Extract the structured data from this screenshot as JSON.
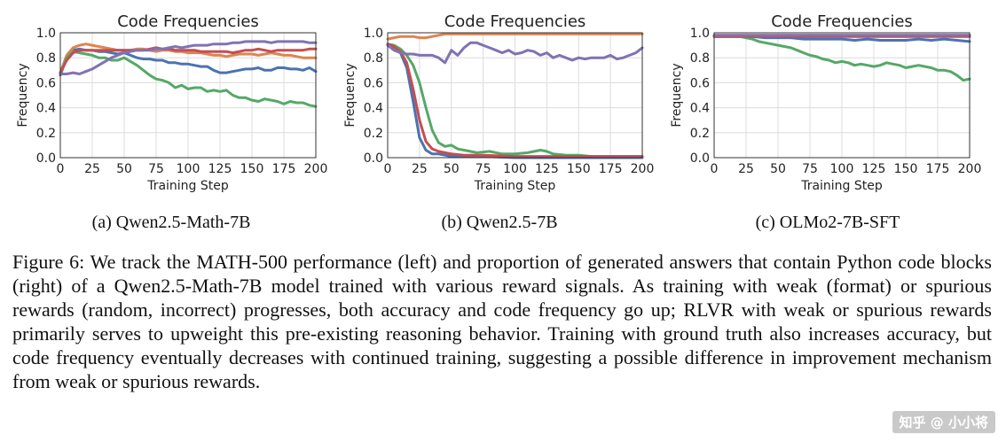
{
  "chart_data": [
    {
      "type": "line",
      "title": "Code Frequencies",
      "xlabel": "Training Step",
      "ylabel": "Frequency",
      "xlim": [
        0,
        200
      ],
      "ylim": [
        0,
        1.0
      ],
      "xticks": [
        0,
        25,
        50,
        75,
        100,
        125,
        150,
        175,
        200
      ],
      "yticks": [
        0.0,
        0.2,
        0.4,
        0.6,
        0.8,
        1.0
      ],
      "grid": true,
      "series": [
        {
          "name": "blue",
          "color": "#4c72b0",
          "x": [
            0,
            5,
            10,
            15,
            20,
            25,
            30,
            35,
            40,
            45,
            50,
            55,
            60,
            65,
            70,
            75,
            80,
            85,
            90,
            95,
            100,
            105,
            110,
            115,
            120,
            125,
            130,
            135,
            140,
            145,
            150,
            155,
            160,
            165,
            170,
            175,
            180,
            185,
            190,
            195,
            200
          ],
          "values": [
            0.66,
            0.8,
            0.86,
            0.87,
            0.86,
            0.86,
            0.85,
            0.85,
            0.84,
            0.83,
            0.84,
            0.82,
            0.8,
            0.79,
            0.79,
            0.78,
            0.78,
            0.76,
            0.76,
            0.75,
            0.75,
            0.74,
            0.73,
            0.73,
            0.7,
            0.68,
            0.68,
            0.69,
            0.7,
            0.71,
            0.71,
            0.72,
            0.7,
            0.7,
            0.72,
            0.72,
            0.71,
            0.71,
            0.7,
            0.72,
            0.69
          ]
        },
        {
          "name": "orange",
          "color": "#dd8452",
          "x": [
            0,
            5,
            10,
            15,
            20,
            25,
            30,
            35,
            40,
            45,
            50,
            55,
            60,
            65,
            70,
            75,
            80,
            85,
            90,
            95,
            100,
            105,
            110,
            115,
            120,
            125,
            130,
            135,
            140,
            145,
            150,
            155,
            160,
            165,
            170,
            175,
            180,
            185,
            190,
            195,
            200
          ],
          "values": [
            0.68,
            0.82,
            0.88,
            0.9,
            0.91,
            0.9,
            0.89,
            0.88,
            0.87,
            0.86,
            0.86,
            0.86,
            0.87,
            0.87,
            0.86,
            0.85,
            0.86,
            0.86,
            0.85,
            0.85,
            0.84,
            0.84,
            0.84,
            0.83,
            0.82,
            0.82,
            0.81,
            0.82,
            0.83,
            0.83,
            0.83,
            0.82,
            0.83,
            0.84,
            0.83,
            0.82,
            0.82,
            0.81,
            0.8,
            0.8,
            0.8
          ]
        },
        {
          "name": "green",
          "color": "#55a868",
          "x": [
            0,
            5,
            10,
            15,
            20,
            25,
            30,
            35,
            40,
            45,
            50,
            55,
            60,
            65,
            70,
            75,
            80,
            85,
            90,
            95,
            100,
            105,
            110,
            115,
            120,
            125,
            130,
            135,
            140,
            145,
            150,
            155,
            160,
            165,
            170,
            175,
            180,
            185,
            190,
            195,
            200
          ],
          "values": [
            0.67,
            0.8,
            0.85,
            0.84,
            0.83,
            0.82,
            0.8,
            0.8,
            0.78,
            0.78,
            0.8,
            0.77,
            0.74,
            0.7,
            0.66,
            0.63,
            0.62,
            0.6,
            0.56,
            0.58,
            0.55,
            0.56,
            0.56,
            0.53,
            0.54,
            0.53,
            0.54,
            0.5,
            0.48,
            0.48,
            0.46,
            0.45,
            0.47,
            0.46,
            0.45,
            0.43,
            0.45,
            0.44,
            0.44,
            0.42,
            0.41
          ]
        },
        {
          "name": "red",
          "color": "#c44e52",
          "x": [
            0,
            5,
            10,
            15,
            20,
            25,
            30,
            35,
            40,
            45,
            50,
            55,
            60,
            65,
            70,
            75,
            80,
            85,
            90,
            95,
            100,
            105,
            110,
            115,
            120,
            125,
            130,
            135,
            140,
            145,
            150,
            155,
            160,
            165,
            170,
            175,
            180,
            185,
            190,
            195,
            200
          ],
          "values": [
            0.68,
            0.78,
            0.84,
            0.86,
            0.86,
            0.86,
            0.86,
            0.86,
            0.86,
            0.86,
            0.86,
            0.86,
            0.86,
            0.86,
            0.87,
            0.88,
            0.87,
            0.87,
            0.86,
            0.86,
            0.86,
            0.86,
            0.85,
            0.85,
            0.85,
            0.85,
            0.85,
            0.84,
            0.85,
            0.86,
            0.86,
            0.87,
            0.86,
            0.85,
            0.86,
            0.86,
            0.86,
            0.86,
            0.86,
            0.87,
            0.87
          ]
        },
        {
          "name": "purple",
          "color": "#8172b3",
          "x": [
            0,
            5,
            10,
            15,
            20,
            25,
            30,
            35,
            40,
            45,
            50,
            55,
            60,
            65,
            70,
            75,
            80,
            85,
            90,
            95,
            100,
            105,
            110,
            115,
            120,
            125,
            130,
            135,
            140,
            145,
            150,
            155,
            160,
            165,
            170,
            175,
            180,
            185,
            190,
            195,
            200
          ],
          "values": [
            0.67,
            0.67,
            0.68,
            0.67,
            0.69,
            0.71,
            0.74,
            0.77,
            0.8,
            0.82,
            0.84,
            0.85,
            0.86,
            0.86,
            0.86,
            0.87,
            0.87,
            0.88,
            0.89,
            0.88,
            0.89,
            0.9,
            0.9,
            0.9,
            0.91,
            0.91,
            0.91,
            0.92,
            0.92,
            0.93,
            0.93,
            0.93,
            0.93,
            0.92,
            0.93,
            0.93,
            0.93,
            0.93,
            0.93,
            0.92,
            0.92
          ]
        }
      ]
    },
    {
      "type": "line",
      "title": "Code Frequencies",
      "xlabel": "Training Step",
      "ylabel": "Frequency",
      "xlim": [
        0,
        200
      ],
      "ylim": [
        0,
        1.0
      ],
      "xticks": [
        0,
        25,
        50,
        75,
        100,
        125,
        150,
        175,
        200
      ],
      "yticks": [
        0.0,
        0.2,
        0.4,
        0.6,
        0.8,
        1.0
      ],
      "grid": true,
      "series": [
        {
          "name": "blue",
          "color": "#4c72b0",
          "x": [
            0,
            5,
            10,
            15,
            20,
            25,
            30,
            35,
            40,
            45,
            50,
            60,
            75,
            100,
            125,
            150,
            175,
            200
          ],
          "values": [
            0.9,
            0.88,
            0.84,
            0.72,
            0.45,
            0.16,
            0.06,
            0.03,
            0.03,
            0.02,
            0.01,
            0.01,
            0.01,
            0.0,
            0.0,
            0.0,
            0.0,
            0.0
          ]
        },
        {
          "name": "orange",
          "color": "#dd8452",
          "x": [
            0,
            5,
            10,
            15,
            20,
            25,
            30,
            35,
            40,
            45,
            50,
            60,
            75,
            100,
            125,
            150,
            175,
            200
          ],
          "values": [
            0.95,
            0.96,
            0.97,
            0.97,
            0.97,
            0.96,
            0.96,
            0.97,
            0.98,
            0.99,
            0.99,
            0.99,
            0.99,
            0.99,
            0.99,
            0.99,
            0.99,
            0.99
          ]
        },
        {
          "name": "green",
          "color": "#55a868",
          "x": [
            0,
            5,
            10,
            15,
            20,
            25,
            30,
            35,
            40,
            45,
            50,
            55,
            60,
            70,
            80,
            90,
            100,
            110,
            120,
            125,
            130,
            140,
            150,
            160,
            175,
            190,
            200
          ],
          "values": [
            0.91,
            0.9,
            0.87,
            0.82,
            0.74,
            0.6,
            0.4,
            0.22,
            0.12,
            0.09,
            0.1,
            0.07,
            0.06,
            0.04,
            0.05,
            0.03,
            0.03,
            0.04,
            0.06,
            0.05,
            0.03,
            0.02,
            0.02,
            0.01,
            0.01,
            0.01,
            0.01
          ]
        },
        {
          "name": "red",
          "color": "#c44e52",
          "x": [
            0,
            5,
            10,
            15,
            20,
            25,
            30,
            35,
            40,
            45,
            50,
            60,
            75,
            100,
            125,
            150,
            175,
            200
          ],
          "values": [
            0.91,
            0.89,
            0.85,
            0.76,
            0.55,
            0.3,
            0.13,
            0.07,
            0.05,
            0.04,
            0.03,
            0.02,
            0.02,
            0.01,
            0.01,
            0.01,
            0.01,
            0.01
          ]
        },
        {
          "name": "purple",
          "color": "#8172b3",
          "x": [
            0,
            5,
            10,
            15,
            20,
            25,
            30,
            35,
            40,
            45,
            50,
            55,
            60,
            65,
            70,
            75,
            80,
            85,
            90,
            95,
            100,
            105,
            110,
            115,
            120,
            125,
            130,
            135,
            140,
            145,
            150,
            155,
            160,
            165,
            170,
            175,
            180,
            185,
            190,
            195,
            200
          ],
          "values": [
            0.9,
            0.86,
            0.84,
            0.83,
            0.83,
            0.82,
            0.82,
            0.82,
            0.8,
            0.76,
            0.86,
            0.82,
            0.88,
            0.92,
            0.92,
            0.9,
            0.88,
            0.86,
            0.84,
            0.86,
            0.83,
            0.84,
            0.86,
            0.85,
            0.82,
            0.84,
            0.8,
            0.82,
            0.8,
            0.78,
            0.8,
            0.79,
            0.8,
            0.8,
            0.8,
            0.82,
            0.79,
            0.8,
            0.82,
            0.84,
            0.88
          ]
        }
      ]
    },
    {
      "type": "line",
      "title": "Code Frequencies",
      "xlabel": "Training Step",
      "ylabel": "Frequency",
      "xlim": [
        0,
        200
      ],
      "ylim": [
        0,
        1.0
      ],
      "xticks": [
        0,
        25,
        50,
        75,
        100,
        125,
        150,
        175,
        200
      ],
      "yticks": [
        0.0,
        0.2,
        0.4,
        0.6,
        0.8,
        1.0
      ],
      "grid": true,
      "series": [
        {
          "name": "blue",
          "color": "#4c72b0",
          "x": [
            0,
            10,
            20,
            30,
            40,
            50,
            60,
            70,
            80,
            90,
            100,
            110,
            120,
            130,
            140,
            150,
            160,
            170,
            180,
            190,
            200
          ],
          "values": [
            0.97,
            0.97,
            0.97,
            0.97,
            0.96,
            0.96,
            0.96,
            0.95,
            0.95,
            0.95,
            0.95,
            0.94,
            0.95,
            0.94,
            0.94,
            0.94,
            0.95,
            0.94,
            0.95,
            0.94,
            0.93
          ]
        },
        {
          "name": "orange",
          "color": "#dd8452",
          "x": [
            0,
            10,
            20,
            30,
            40,
            50,
            60,
            70,
            80,
            90,
            100,
            110,
            120,
            130,
            140,
            150,
            160,
            170,
            180,
            190,
            200
          ],
          "values": [
            0.98,
            0.98,
            0.98,
            0.98,
            0.98,
            0.98,
            0.98,
            0.98,
            0.98,
            0.98,
            0.98,
            0.98,
            0.98,
            0.98,
            0.98,
            0.98,
            0.98,
            0.98,
            0.98,
            0.98,
            0.98
          ]
        },
        {
          "name": "green",
          "color": "#55a868",
          "x": [
            0,
            5,
            10,
            15,
            20,
            25,
            30,
            35,
            40,
            45,
            50,
            55,
            60,
            65,
            70,
            75,
            80,
            85,
            90,
            95,
            100,
            105,
            110,
            115,
            120,
            125,
            130,
            135,
            140,
            145,
            150,
            155,
            160,
            165,
            170,
            175,
            180,
            185,
            190,
            195,
            200
          ],
          "values": [
            0.97,
            0.97,
            0.97,
            0.97,
            0.97,
            0.96,
            0.95,
            0.93,
            0.92,
            0.91,
            0.9,
            0.89,
            0.88,
            0.86,
            0.84,
            0.82,
            0.81,
            0.79,
            0.78,
            0.76,
            0.77,
            0.76,
            0.74,
            0.75,
            0.74,
            0.73,
            0.74,
            0.76,
            0.75,
            0.74,
            0.72,
            0.73,
            0.74,
            0.73,
            0.72,
            0.7,
            0.7,
            0.69,
            0.66,
            0.62,
            0.63
          ]
        },
        {
          "name": "red",
          "color": "#c44e52",
          "x": [
            0,
            20,
            40,
            60,
            80,
            100,
            120,
            140,
            160,
            180,
            200
          ],
          "values": [
            0.97,
            0.97,
            0.97,
            0.97,
            0.97,
            0.97,
            0.97,
            0.97,
            0.97,
            0.97,
            0.97
          ]
        },
        {
          "name": "purple",
          "color": "#8172b3",
          "x": [
            0,
            20,
            40,
            60,
            80,
            100,
            120,
            140,
            160,
            180,
            200
          ],
          "values": [
            0.98,
            0.98,
            0.98,
            0.98,
            0.98,
            0.98,
            0.98,
            0.98,
            0.98,
            0.98,
            0.98
          ]
        }
      ]
    }
  ],
  "subcaptions": [
    "(a) Qwen2.5-Math-7B",
    "(b) Qwen2.5-7B",
    "(c) OLMo2-7B-SFT"
  ],
  "caption": "Figure 6: We track the MATH-500 performance (left) and proportion of generated answers that contain Python code blocks (right) of a Qwen2.5-Math-7B model trained with various reward signals. As training with weak (format) or spurious rewards (random, incorrect) progresses, both accuracy and code frequency go up; RLVR with weak or spurious rewards primarily serves to upweight this pre-existing reasoning behavior. Training with ground truth also increases accuracy, but code frequency eventually decreases with continued training, suggesting a possible difference in improvement mechanism from weak or spurious rewards.",
  "watermark": "知乎 @ 小小将"
}
